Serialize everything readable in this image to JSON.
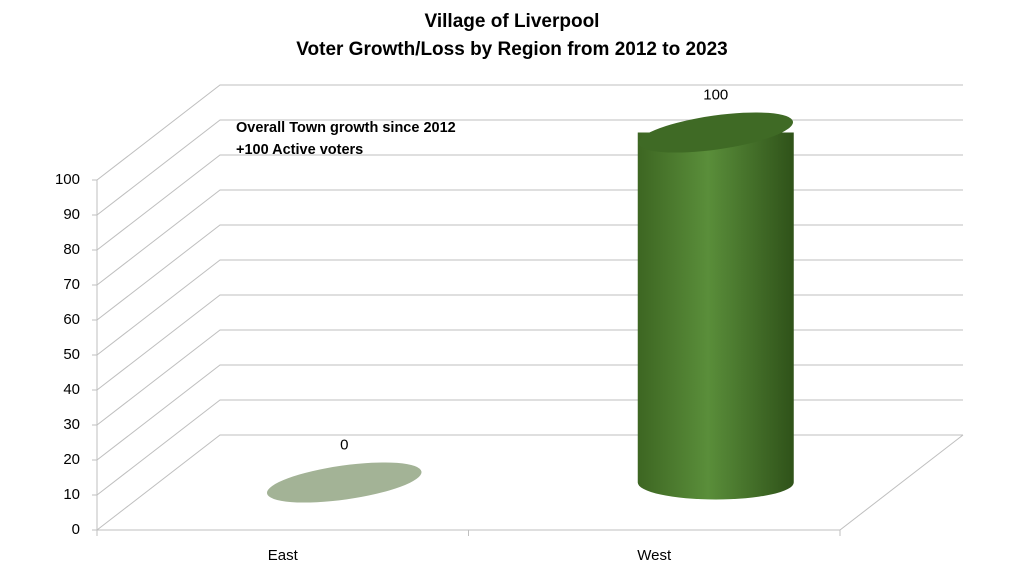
{
  "chart_data": {
    "type": "cylinder",
    "title": [
      "Village of Liverpool",
      "Voter Growth/Loss by Region from 2012 to 2023"
    ],
    "annotation": "Overall Town growth since 2012 +100 Active voters",
    "categories": [
      "East",
      "West"
    ],
    "values": [
      0,
      100
    ],
    "colors": [
      "#a3b396",
      "#4f8131"
    ],
    "ylim": [
      0,
      100
    ],
    "yticks": [
      0,
      10,
      20,
      30,
      40,
      50,
      60,
      70,
      80,
      90,
      100
    ],
    "grid": true
  }
}
